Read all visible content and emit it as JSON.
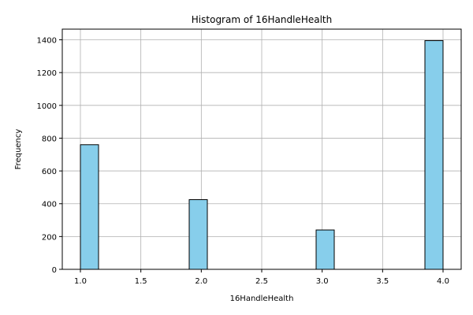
{
  "chart_data": {
    "type": "bar",
    "title": "Histogram of 16HandleHealth",
    "xlabel": "16HandleHealth",
    "ylabel": "Frequency",
    "bins": [
      {
        "x0": 1.0,
        "x1": 1.15,
        "count": 760
      },
      {
        "x0": 1.9,
        "x1": 2.05,
        "count": 425
      },
      {
        "x0": 2.95,
        "x1": 3.1,
        "count": 240
      },
      {
        "x0": 3.85,
        "x1": 4.0,
        "count": 1395
      }
    ],
    "xlim": [
      0.85,
      4.15
    ],
    "ylim": [
      0,
      1465
    ],
    "xticks": [
      "1.0",
      "1.5",
      "2.0",
      "2.5",
      "3.0",
      "3.5",
      "4.0"
    ],
    "yticks": [
      "0",
      "200",
      "400",
      "600",
      "800",
      "1000",
      "1200",
      "1400"
    ],
    "grid": true,
    "bar_color": "#87CEEB",
    "edge_color": "#000000",
    "grid_color": "#b0b0b0"
  }
}
